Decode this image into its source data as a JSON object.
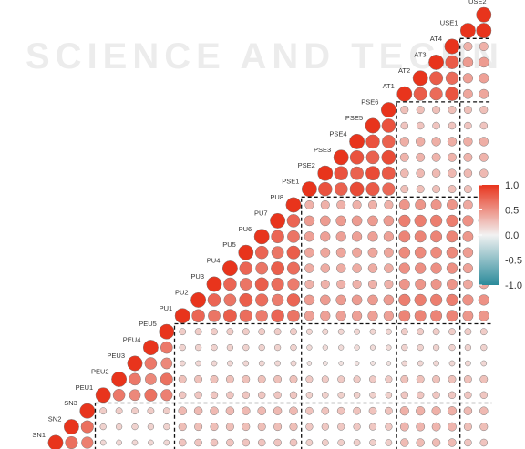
{
  "watermark": "SCIENCE AND TECHN",
  "chart_data": {
    "type": "heatmap",
    "subtype": "correlogram-lower-triangle-circles",
    "variables": [
      "SN1",
      "SN2",
      "SN3",
      "PEU1",
      "PEU2",
      "PEU3",
      "PEU4",
      "PEU5",
      "PU1",
      "PU2",
      "PU3",
      "PU4",
      "PU5",
      "PU6",
      "PU7",
      "PU8",
      "PSE1",
      "PSE2",
      "PSE3",
      "PSE4",
      "PSE5",
      "PSE6",
      "AT1",
      "AT2",
      "AT3",
      "AT4",
      "USE1",
      "USE2"
    ],
    "groups": [
      {
        "name": "SN",
        "size": 3
      },
      {
        "name": "PEU",
        "size": 5
      },
      {
        "name": "PU",
        "size": 8
      },
      {
        "name": "PSE",
        "size": 6
      },
      {
        "name": "AT",
        "size": 4
      },
      {
        "name": "USE",
        "size": 2
      }
    ],
    "within_group_correlation": {
      "SN": 0.65,
      "PEU": 0.6,
      "PU": 0.7,
      "PSE": 0.8,
      "AT": 0.75,
      "USE": 1.0
    },
    "between_group_correlation": [
      {
        "pair": [
          "PEU",
          "SN"
        ],
        "value": 0.2
      },
      {
        "pair": [
          "PU",
          "SN"
        ],
        "value": 0.3
      },
      {
        "pair": [
          "PU",
          "PEU"
        ],
        "value": 0.2
      },
      {
        "pair": [
          "PSE",
          "SN"
        ],
        "value": 0.25
      },
      {
        "pair": [
          "PSE",
          "PEU"
        ],
        "value": 0.15
      },
      {
        "pair": [
          "PSE",
          "PU"
        ],
        "value": 0.4
      },
      {
        "pair": [
          "AT",
          "SN"
        ],
        "value": 0.35
      },
      {
        "pair": [
          "AT",
          "PEU"
        ],
        "value": 0.2
      },
      {
        "pair": [
          "AT",
          "PU"
        ],
        "value": 0.55
      },
      {
        "pair": [
          "AT",
          "PSE"
        ],
        "value": 0.3
      },
      {
        "pair": [
          "USE",
          "SN"
        ],
        "value": 0.3
      },
      {
        "pair": [
          "USE",
          "PEU"
        ],
        "value": 0.2
      },
      {
        "pair": [
          "USE",
          "PU"
        ],
        "value": 0.45
      },
      {
        "pair": [
          "USE",
          "PSE"
        ],
        "value": 0.3
      },
      {
        "pair": [
          "USE",
          "AT"
        ],
        "value": 0.4
      }
    ],
    "diagonal_correlation": 1.0,
    "colorscale": {
      "low": "#2a8a9a",
      "mid": "#f2f2f2",
      "high": "#e8341c"
    },
    "legend": {
      "placement": "right",
      "ticks": [
        "1.0",
        "0.5",
        "0.0",
        "-0.5",
        "-1.0"
      ],
      "range": [
        -1,
        1
      ]
    },
    "group_separators": "dashed black lines"
  }
}
